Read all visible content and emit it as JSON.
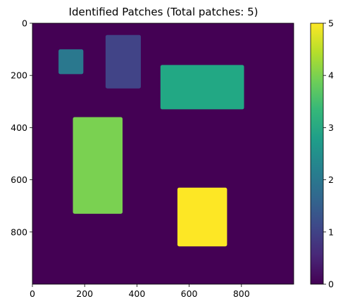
{
  "chart_data": {
    "type": "heatmap",
    "title": "Identified Patches (Total patches: 5)",
    "xlabel": "",
    "ylabel": "",
    "image_size": [
      1000,
      1000
    ],
    "xlim": [
      0,
      1000
    ],
    "ylim": [
      1000,
      0
    ],
    "x_ticks": [
      0,
      200,
      400,
      600,
      800
    ],
    "x_tick_labels": [
      "0",
      "200",
      "400",
      "600",
      "800"
    ],
    "y_ticks": [
      0,
      200,
      400,
      600,
      800
    ],
    "y_tick_labels": [
      "0",
      "200",
      "400",
      "600",
      "800"
    ],
    "grid": false,
    "colormap": "viridis",
    "value_range": [
      0,
      5
    ],
    "background_value": 0,
    "background_color": "#440154",
    "patches": [
      {
        "label": 1,
        "x0": 280,
        "x1": 415,
        "y0": 45,
        "y1": 250,
        "color": "#414487"
      },
      {
        "label": 2,
        "x0": 100,
        "x1": 195,
        "y0": 100,
        "y1": 195,
        "color": "#2a788e"
      },
      {
        "label": 3,
        "x0": 490,
        "x1": 810,
        "y0": 160,
        "y1": 330,
        "color": "#22a884"
      },
      {
        "label": 4,
        "x0": 155,
        "x1": 345,
        "y0": 360,
        "y1": 730,
        "color": "#7ad151"
      },
      {
        "label": 5,
        "x0": 555,
        "x1": 745,
        "y0": 630,
        "y1": 855,
        "color": "#fde725"
      }
    ],
    "colorbar": {
      "ticks": [
        0,
        1,
        2,
        3,
        4,
        5
      ],
      "tick_labels": [
        "0",
        "1",
        "2",
        "3",
        "4",
        "5"
      ],
      "stops": [
        "#440154",
        "#482878",
        "#3e4989",
        "#31688e",
        "#26828e",
        "#1f9e89",
        "#35b779",
        "#6ece58",
        "#b5de2b",
        "#fde725"
      ]
    }
  }
}
